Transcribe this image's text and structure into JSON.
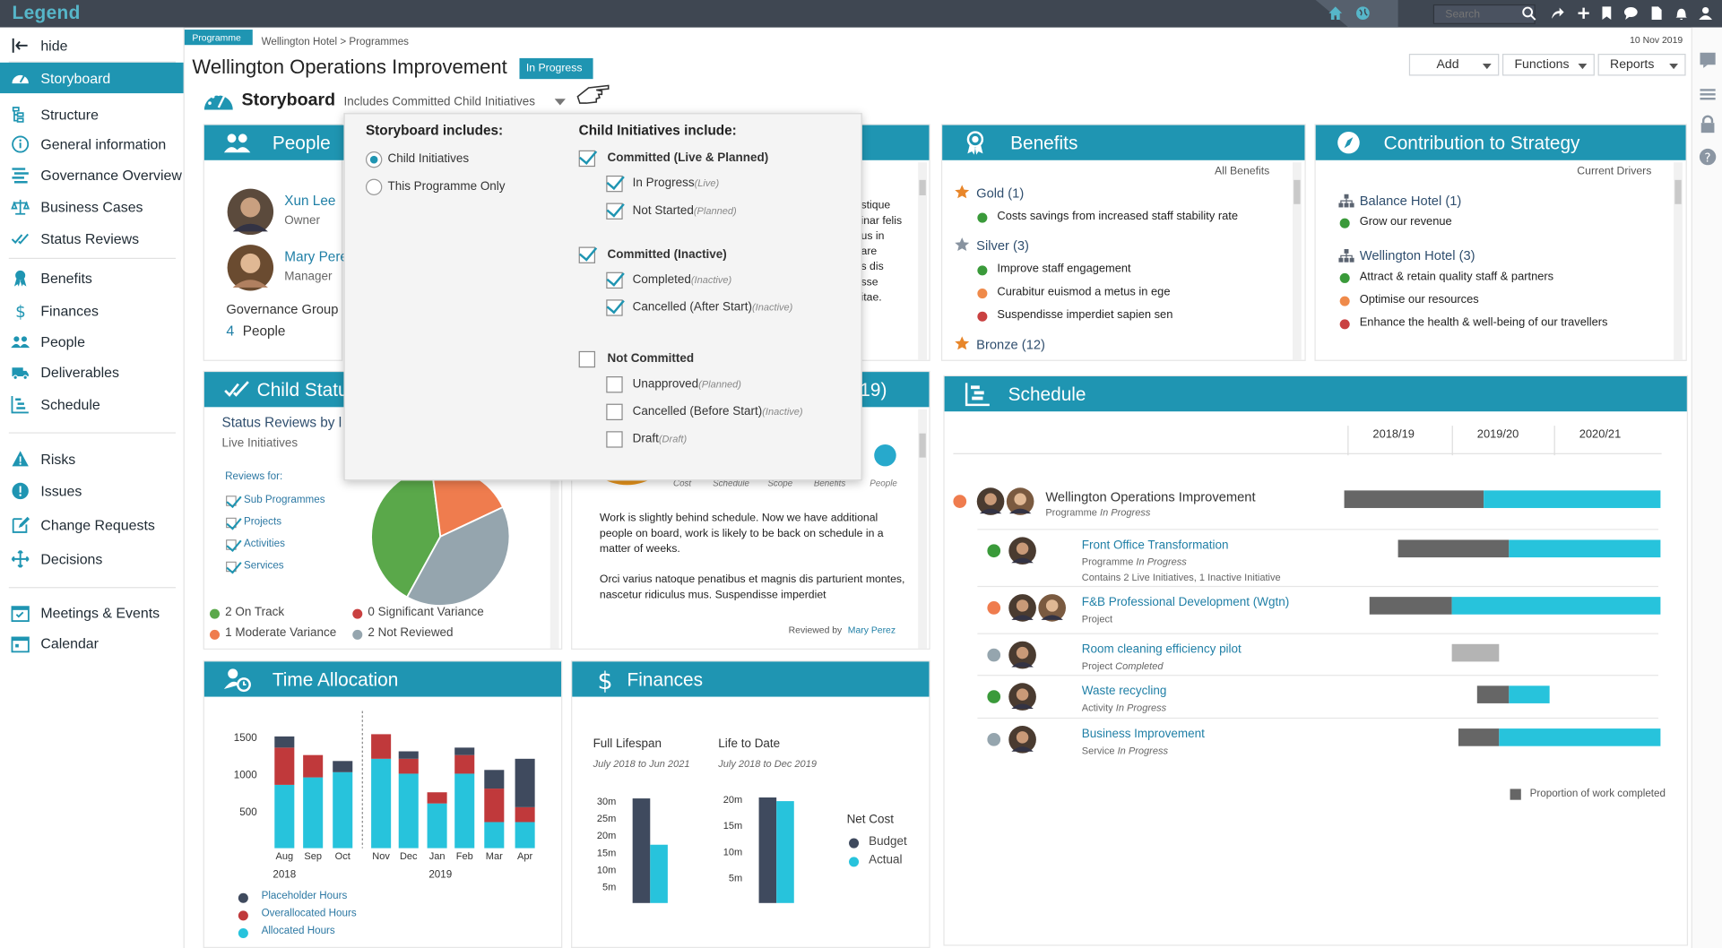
{
  "app": {
    "logo": "Legend",
    "search_placeholder": "Search"
  },
  "sidebar": {
    "hide_label": "hide",
    "items": [
      {
        "label": "Storyboard",
        "icon": "dashboard-icon",
        "active": true
      },
      {
        "label": "Structure",
        "icon": "structure-icon"
      },
      {
        "label": "General information",
        "icon": "info-icon"
      },
      {
        "label": "Governance Overview",
        "icon": "governance-icon"
      },
      {
        "label": "Business Cases",
        "icon": "scales-icon"
      },
      {
        "label": "Status Reviews",
        "icon": "checks-icon"
      },
      {
        "label": "Benefits",
        "icon": "ribbon-icon"
      },
      {
        "label": "Finances",
        "icon": "dollar-icon"
      },
      {
        "label": "People",
        "icon": "people-icon"
      },
      {
        "label": "Deliverables",
        "icon": "truck-icon"
      },
      {
        "label": "Schedule",
        "icon": "schedule-icon"
      },
      {
        "label": "Risks",
        "icon": "warning-icon"
      },
      {
        "label": "Issues",
        "icon": "exclamation-icon"
      },
      {
        "label": "Change Requests",
        "icon": "edit-icon"
      },
      {
        "label": "Decisions",
        "icon": "decision-icon"
      },
      {
        "label": "Meetings & Events",
        "icon": "calendar-check-icon"
      },
      {
        "label": "Calendar",
        "icon": "calendar-icon"
      }
    ]
  },
  "header": {
    "badge": "Programme",
    "breadcrumb": "Wellington Hotel > Programmes",
    "date": "10 Nov 2019",
    "title": "Wellington Operations Improvement",
    "status": "In Progress",
    "buttons": {
      "add": "Add",
      "functions": "Functions",
      "reports": "Reports"
    },
    "storyboard_title": "Storyboard",
    "storyboard_filter": "Includes Committed Child  Initiatives"
  },
  "dropdown": {
    "left_title": "Storyboard includes:",
    "left_options": [
      {
        "label": "Child Initiatives",
        "selected": true
      },
      {
        "label": "This Programme Only",
        "selected": false
      }
    ],
    "right_title": "Child Initiatives include:",
    "groups": [
      {
        "label": "Committed (Live & Planned)",
        "checked": true,
        "children": [
          {
            "label": "In Progress",
            "tag": "(Live)",
            "checked": true
          },
          {
            "label": "Not Started",
            "tag": "(Planned)",
            "checked": true
          }
        ]
      },
      {
        "label": "Committed (Inactive)",
        "checked": true,
        "children": [
          {
            "label": "Completed",
            "tag": "(Inactive)",
            "checked": true
          },
          {
            "label": "Cancelled (After Start)",
            "tag": "(Inactive)",
            "checked": true
          }
        ]
      },
      {
        "label": "Not Committed",
        "checked": false,
        "children": [
          {
            "label": "Unapproved",
            "tag": "(Planned)",
            "checked": false
          },
          {
            "label": "Cancelled (Before Start)",
            "tag": "(Inactive)",
            "checked": false
          },
          {
            "label": "Draft",
            "tag": "(Draft)",
            "checked": false
          }
        ]
      }
    ]
  },
  "people": {
    "title": "People",
    "members": [
      {
        "name": "Xun Lee",
        "role": "Owner"
      },
      {
        "name": "Mary Pere",
        "role": "Manager"
      }
    ],
    "group_label": "Governance Group",
    "group_count": "4",
    "group_unit": "People"
  },
  "hidden_card": {
    "text_lines": [
      "stique",
      "inar felis",
      "us in",
      "are",
      "s dis",
      "sse",
      "itae."
    ]
  },
  "benefits": {
    "title": "Benefits",
    "filter": "All Benefits",
    "tiers": [
      {
        "label": "Gold (1)",
        "color": "#e8862a",
        "items": [
          {
            "text": "Costs savings from increased staff stability rate",
            "color": "#3a9a3a"
          }
        ]
      },
      {
        "label": "Silver (3)",
        "color": "#8893a0",
        "items": [
          {
            "text": "Improve staff engagement",
            "color": "#3a9a3a"
          },
          {
            "text": "Curabitur euismod a metus in ege",
            "color": "#ef8a4a"
          },
          {
            "text": "Suspendisse imperdiet sapien sen",
            "color": "#c94040"
          }
        ]
      },
      {
        "label": "Bronze (12)",
        "color": "#e8862a",
        "items": []
      }
    ]
  },
  "strategy": {
    "title": "Contribution to Strategy",
    "filter": "Current Drivers",
    "groups": [
      {
        "label": "Balance Hotel (1)",
        "items": [
          {
            "text": "Grow our revenue",
            "color": "#3a9a3a"
          }
        ]
      },
      {
        "label": "Wellington Hotel (3)",
        "items": [
          {
            "text": "Attract & retain quality staff & partners",
            "color": "#3a9a3a"
          },
          {
            "text": "Optimise our resources",
            "color": "#ef8a4a"
          },
          {
            "text": "Enhance the health & well-being of our travellers",
            "color": "#c94040"
          }
        ]
      }
    ]
  },
  "child_status": {
    "title": "Child Statu",
    "subtitle": "Status Reviews by l",
    "caption": "Live Initiatives",
    "reviews_for": "Reviews for:",
    "filters": [
      "Sub Programmes",
      "Projects",
      "Activities",
      "Services"
    ],
    "legend": [
      {
        "label": "2 On Track",
        "color": "#5aa84a"
      },
      {
        "label": "0 Significant Variance",
        "color": "#c94040"
      },
      {
        "label": "1 Moderate Variance",
        "color": "#ef7c4e"
      },
      {
        "label": "2 Not Reviewed",
        "color": "#95a5ae"
      }
    ]
  },
  "pie_data": {
    "type": "pie",
    "slices": [
      {
        "label": "On Track",
        "value": 2,
        "color": "#5aa84a"
      },
      {
        "label": "Moderate Variance",
        "value": 1,
        "color": "#ef7c4e"
      },
      {
        "label": "Not Reviewed",
        "value": 2,
        "color": "#95a5ae"
      }
    ]
  },
  "status_review": {
    "title_fragment": "19)",
    "axes": [
      "Cost",
      "Schedule",
      "Scope",
      "Benefits",
      "People"
    ],
    "paragraph1": "Work is slightly behind schedule. Now we have additional people on board, work is likely to be back on schedule in a matter of weeks.",
    "paragraph2": "Orci varius natoque penatibus et magnis dis parturient montes, nascetur ridiculus mus. Suspendisse imperdiet",
    "reviewed_by_label": "Reviewed by",
    "reviewer": "Mary Perez"
  },
  "schedule": {
    "title": "Schedule",
    "years": [
      "2018/19",
      "2019/20",
      "2020/21"
    ],
    "rows": [
      {
        "name": "Wellington Operations Improvement",
        "type": "Programme",
        "status": "In Progress",
        "extra": "",
        "color": "#ef7c4e",
        "level": 0,
        "start": 0.0,
        "done": 0.44,
        "end": 1.0
      },
      {
        "name": "Front Office Transformation",
        "type": "Programme",
        "status": "In Progress",
        "extra": "Contains 2 Live Initiatives, 1 Inactive Initiative",
        "color": "#3a9a3a",
        "level": 1,
        "start": 0.17,
        "done": 0.52,
        "end": 1.0
      },
      {
        "name": "F&B Professional Development (Wgtn)",
        "type": "Project",
        "status": "",
        "extra": "",
        "color": "#ef7c4e",
        "level": 1,
        "start": 0.08,
        "done": 0.34,
        "end": 1.0
      },
      {
        "name": "Room cleaning efficiency pilot",
        "type": "Project",
        "status": "Completed",
        "extra": "",
        "color": "#95a5ae",
        "level": 1,
        "start": 0.34,
        "done": 0.49,
        "end": 0.49
      },
      {
        "name": "Waste recycling",
        "type": "Activity",
        "status": "In Progress",
        "extra": "",
        "color": "#3a9a3a",
        "level": 1,
        "start": 0.42,
        "done": 0.52,
        "end": 0.65
      },
      {
        "name": "Business Improvement",
        "type": "Service",
        "status": "In Progress",
        "extra": "",
        "color": "#95a5ae",
        "level": 1,
        "start": 0.36,
        "done": 0.49,
        "end": 1.0
      }
    ],
    "legend": "Proportion of work completed"
  },
  "time_allocation": {
    "title": "Time Allocation",
    "legend": [
      {
        "label": "Placeholder Hours",
        "color": "#3f4a5e"
      },
      {
        "label": "Overallocated Hours",
        "color": "#c0393b"
      },
      {
        "label": "Allocated Hours",
        "color": "#27c3dc"
      }
    ]
  },
  "chart_data": {
    "type": "bar",
    "stacked": true,
    "categories": [
      "Aug",
      "Sep",
      "Oct",
      "",
      "Nov",
      "Dec",
      "Jan",
      "Feb",
      "Mar",
      "Apr"
    ],
    "year_labels": [
      "2018",
      "2019"
    ],
    "yticks": [
      500,
      1000,
      1500
    ],
    "ylim": [
      0,
      1650
    ],
    "series": [
      {
        "name": "Allocated Hours",
        "color": "#27c3dc",
        "values": [
          850,
          950,
          1020,
          0,
          1200,
          1000,
          600,
          1000,
          350,
          350
        ]
      },
      {
        "name": "Overallocated Hours",
        "color": "#c0393b",
        "values": [
          500,
          300,
          0,
          0,
          330,
          200,
          150,
          250,
          450,
          200
        ]
      },
      {
        "name": "Placeholder Hours",
        "color": "#3f4a5e",
        "values": [
          150,
          0,
          150,
          0,
          0,
          100,
          0,
          100,
          250,
          650
        ]
      }
    ]
  },
  "finances": {
    "title": "Finances",
    "full_label": "Full Lifespan",
    "full_range": "July 2018 to Jun 2021",
    "ltd_label": "Life to Date",
    "ltd_range": "July 2018 to Dec 2019",
    "net_cost": "Net Cost",
    "legend": [
      {
        "label": "Budget",
        "color": "#3f4a5e"
      },
      {
        "label": "Actual",
        "color": "#27c3dc"
      }
    ],
    "full": {
      "yticks": [
        "5m",
        "10m",
        "15m",
        "20m",
        "25m",
        "30m"
      ],
      "budget": 30.5,
      "actual": 17.0,
      "ymax": 32
    },
    "ltd": {
      "yticks": [
        "5m",
        "10m",
        "15m",
        "20m"
      ],
      "budget": 20.2,
      "actual": 19.5,
      "ymax": 21
    }
  }
}
